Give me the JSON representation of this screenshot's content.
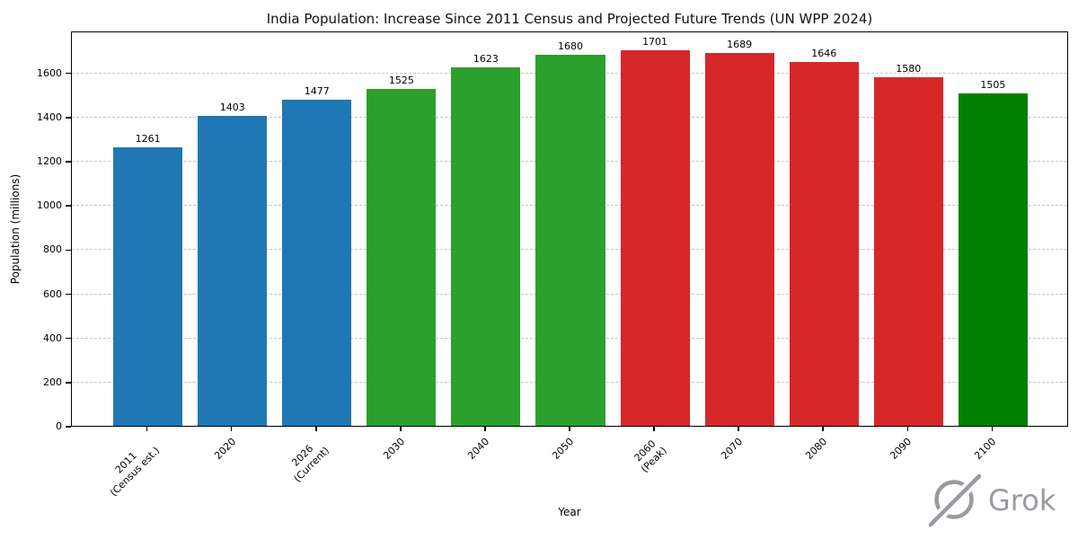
{
  "watermark": "Grok",
  "chart_data": {
    "type": "bar",
    "title": "India Population: Increase Since 2011 Census and Projected Future Trends (UN WPP 2024)",
    "xlabel": "Year",
    "ylabel": "Population (millions)",
    "categories": [
      "2011\n(Census est.)",
      "2020",
      "2026\n(Current)",
      "2030",
      "2040",
      "2050",
      "2060\n(Peak)",
      "2070",
      "2080",
      "2090",
      "2100"
    ],
    "values": [
      1261,
      1403,
      1477,
      1525,
      1623,
      1680,
      1701,
      1689,
      1646,
      1580,
      1505
    ],
    "bar_colors": [
      "#1f77b4",
      "#1f77b4",
      "#1f77b4",
      "#2ca02c",
      "#2ca02c",
      "#2ca02c",
      "#d62728",
      "#d62728",
      "#d62728",
      "#d62728",
      "#008000"
    ],
    "yticks": [
      0,
      200,
      400,
      600,
      800,
      1000,
      1200,
      1400,
      1600
    ],
    "ylim": [
      0,
      1790
    ],
    "grid": "y-axis horizontal dashed",
    "legend": "none",
    "watermark_color": "#9a9aa0"
  }
}
